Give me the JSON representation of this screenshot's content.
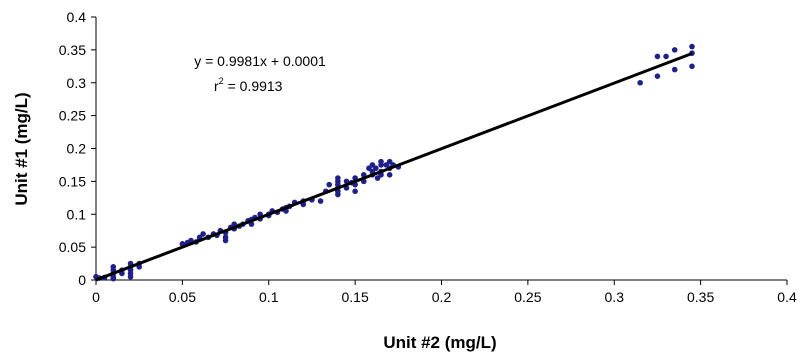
{
  "chart_data": {
    "type": "scatter",
    "title": "",
    "xlabel": "Unit #2 (mg/L)",
    "ylabel": "Unit #1 (mg/L)",
    "xlim": [
      0,
      0.4
    ],
    "ylim": [
      0,
      0.4
    ],
    "x_ticks": [
      0,
      0.05,
      0.1,
      0.15,
      0.2,
      0.25,
      0.3,
      0.35,
      0.4
    ],
    "y_ticks": [
      0,
      0.05,
      0.1,
      0.15,
      0.2,
      0.25,
      0.3,
      0.35,
      0.4
    ],
    "x_tick_labels": [
      "0",
      "0.05",
      "0.1",
      "0.15",
      "0.2",
      "0.25",
      "0.3",
      "0.35",
      "0.4"
    ],
    "y_tick_labels": [
      "0",
      "0.05",
      "0.1",
      "0.15",
      "0.2",
      "0.25",
      "0.3",
      "0.35",
      "0.4"
    ],
    "grid": false,
    "legend": "none",
    "point_color": "#1f1f8f",
    "line_color": "#000000",
    "trendline": {
      "slope": 0.9981,
      "intercept": 0.0001,
      "x_range": [
        0,
        0.345
      ]
    },
    "annotations": {
      "equation": "y = 0.9981x + 0.0001",
      "r2_prefix": "r",
      "r2_sup": "2",
      "r2_value": " = 0.9913"
    },
    "points": [
      [
        0,
        0.005
      ],
      [
        0.002,
        0.003
      ],
      [
        0.005,
        0.004
      ],
      [
        0.01,
        0.02
      ],
      [
        0.01,
        0.015
      ],
      [
        0.01,
        0.01
      ],
      [
        0.01,
        0.005
      ],
      [
        0.01,
        0.002
      ],
      [
        0.015,
        0.015
      ],
      [
        0.015,
        0.01
      ],
      [
        0.02,
        0.025
      ],
      [
        0.02,
        0.02
      ],
      [
        0.02,
        0.015
      ],
      [
        0.02,
        0.01
      ],
      [
        0.02,
        0.005
      ],
      [
        0.025,
        0.025
      ],
      [
        0.025,
        0.02
      ],
      [
        0.05,
        0.055
      ],
      [
        0.053,
        0.057
      ],
      [
        0.055,
        0.06
      ],
      [
        0.058,
        0.058
      ],
      [
        0.06,
        0.065
      ],
      [
        0.06,
        0.062
      ],
      [
        0.062,
        0.07
      ],
      [
        0.065,
        0.065
      ],
      [
        0.068,
        0.07
      ],
      [
        0.07,
        0.068
      ],
      [
        0.072,
        0.075
      ],
      [
        0.075,
        0.072
      ],
      [
        0.075,
        0.065
      ],
      [
        0.075,
        0.06
      ],
      [
        0.078,
        0.08
      ],
      [
        0.08,
        0.078
      ],
      [
        0.08,
        0.085
      ],
      [
        0.083,
        0.082
      ],
      [
        0.085,
        0.085
      ],
      [
        0.088,
        0.09
      ],
      [
        0.09,
        0.092
      ],
      [
        0.09,
        0.085
      ],
      [
        0.092,
        0.095
      ],
      [
        0.095,
        0.093
      ],
      [
        0.095,
        0.1
      ],
      [
        0.1,
        0.098
      ],
      [
        0.1,
        0.1
      ],
      [
        0.102,
        0.105
      ],
      [
        0.105,
        0.103
      ],
      [
        0.108,
        0.108
      ],
      [
        0.11,
        0.105
      ],
      [
        0.11,
        0.11
      ],
      [
        0.112,
        0.112
      ],
      [
        0.115,
        0.118
      ],
      [
        0.12,
        0.115
      ],
      [
        0.12,
        0.12
      ],
      [
        0.125,
        0.122
      ],
      [
        0.13,
        0.12
      ],
      [
        0.133,
        0.135
      ],
      [
        0.135,
        0.145
      ],
      [
        0.14,
        0.155
      ],
      [
        0.14,
        0.15
      ],
      [
        0.14,
        0.145
      ],
      [
        0.14,
        0.14
      ],
      [
        0.14,
        0.135
      ],
      [
        0.14,
        0.13
      ],
      [
        0.145,
        0.15
      ],
      [
        0.145,
        0.14
      ],
      [
        0.148,
        0.148
      ],
      [
        0.15,
        0.155
      ],
      [
        0.15,
        0.145
      ],
      [
        0.15,
        0.135
      ],
      [
        0.155,
        0.16
      ],
      [
        0.155,
        0.15
      ],
      [
        0.158,
        0.17
      ],
      [
        0.16,
        0.175
      ],
      [
        0.16,
        0.165
      ],
      [
        0.16,
        0.16
      ],
      [
        0.162,
        0.17
      ],
      [
        0.163,
        0.155
      ],
      [
        0.165,
        0.18
      ],
      [
        0.165,
        0.175
      ],
      [
        0.165,
        0.165
      ],
      [
        0.165,
        0.16
      ],
      [
        0.168,
        0.175
      ],
      [
        0.17,
        0.18
      ],
      [
        0.17,
        0.17
      ],
      [
        0.17,
        0.16
      ],
      [
        0.172,
        0.175
      ],
      [
        0.175,
        0.172
      ],
      [
        0.315,
        0.3
      ],
      [
        0.325,
        0.34
      ],
      [
        0.325,
        0.31
      ],
      [
        0.33,
        0.34
      ],
      [
        0.335,
        0.35
      ],
      [
        0.335,
        0.32
      ],
      [
        0.345,
        0.355
      ],
      [
        0.345,
        0.345
      ],
      [
        0.345,
        0.325
      ]
    ]
  }
}
